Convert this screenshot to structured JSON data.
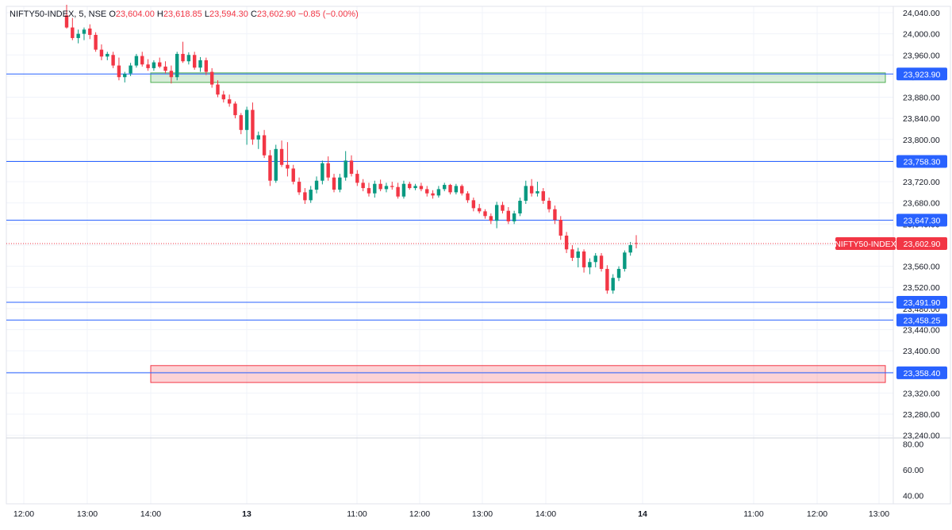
{
  "legend": {
    "symbol": "NIFTY50-INDEX, 5, NSE",
    "o_key": "O",
    "o_val": "23,604.00",
    "h_key": "H",
    "h_val": "23,618.85",
    "l_key": "L",
    "l_val": "23,594.30",
    "c_key": "C",
    "c_val": "23,602.90",
    "change": "−0.85 (−0.00%)"
  },
  "price_axis": {
    "ticks": [
      "24,040.00",
      "24,000.00",
      "23,960.00",
      "23,920.00",
      "23,880.00",
      "23,840.00",
      "23,800.00",
      "23,760.00",
      "23,720.00",
      "23,680.00",
      "23,640.00",
      "23,600.00",
      "23,560.00",
      "23,520.00",
      "23,480.00",
      "23,440.00",
      "23,400.00",
      "23,360.00",
      "23,320.00",
      "23,280.00",
      "23,240.00"
    ],
    "tick_values": [
      24040,
      24000,
      23960,
      23920,
      23880,
      23840,
      23800,
      23760,
      23720,
      23680,
      23640,
      23600,
      23560,
      23520,
      23480,
      23440,
      23400,
      23360,
      23320,
      23280,
      23240
    ]
  },
  "indicator_axis": {
    "ticks": [
      "80.00",
      "60.00",
      "40.00"
    ],
    "tick_values": [
      80,
      60,
      40
    ]
  },
  "time_axis": {
    "labels": [
      "12:00",
      "13:00",
      "14:00",
      "13",
      "11:00",
      "12:00",
      "13:00",
      "14:00",
      "14",
      "11:00",
      "12:00",
      "13:00"
    ],
    "bold": [
      false,
      false,
      false,
      true,
      false,
      false,
      false,
      false,
      true,
      false,
      false,
      false
    ]
  },
  "horizontal_lines": [
    {
      "value": 23923.9,
      "label": "23,923.90"
    },
    {
      "value": 23758.3,
      "label": "23,758.30"
    },
    {
      "value": 23647.3,
      "label": "23,647.30"
    },
    {
      "value": 23491.9,
      "label": "23,491.90"
    },
    {
      "value": 23458.25,
      "label": "23,458.25"
    },
    {
      "value": 23358.4,
      "label": "23,358.40"
    }
  ],
  "zones": [
    {
      "name": "supply-zone",
      "top": 23926,
      "bottom": 23908,
      "color": "#4caf50"
    },
    {
      "name": "demand-zone",
      "top": 23372,
      "bottom": 23340,
      "color": "#f23645"
    }
  ],
  "current_price": {
    "value": 23602.9,
    "symbol_label": "NIFTY50-INDEX",
    "price_label": "23,602.90"
  },
  "colors": {
    "up": "#089981",
    "down": "#f23645",
    "line": "#2962ff",
    "grid": "#f0f3fa"
  },
  "chart_data": {
    "type": "candlestick",
    "series": [
      {
        "name": "NIFTY50-INDEX",
        "ohlc": [
          [
            24035,
            24055,
            24010,
            24012
          ],
          [
            24012,
            24030,
            23988,
            23992
          ],
          [
            23992,
            24008,
            23982,
            24000
          ],
          [
            24000,
            24012,
            23988,
            24008
          ],
          [
            24010,
            24018,
            23990,
            23998
          ],
          [
            23998,
            24003,
            23966,
            23970
          ],
          [
            23970,
            23980,
            23950,
            23957
          ],
          [
            23957,
            23966,
            23950,
            23962
          ],
          [
            23960,
            23966,
            23935,
            23940
          ],
          [
            23940,
            23955,
            23912,
            23918
          ],
          [
            23918,
            23928,
            23908,
            23924
          ],
          [
            23925,
            23945,
            23920,
            23940
          ],
          [
            23940,
            23962,
            23936,
            23958
          ],
          [
            23958,
            23966,
            23938,
            23942
          ],
          [
            23942,
            23952,
            23930,
            23935
          ],
          [
            23935,
            23950,
            23930,
            23946
          ],
          [
            23946,
            23955,
            23935,
            23938
          ],
          [
            23938,
            23948,
            23925,
            23930
          ],
          [
            23930,
            23940,
            23906,
            23918
          ],
          [
            23918,
            23966,
            23912,
            23962
          ],
          [
            23962,
            23985,
            23945,
            23948
          ],
          [
            23948,
            23965,
            23942,
            23960
          ],
          [
            23960,
            23966,
            23932,
            23936
          ],
          [
            23936,
            23956,
            23928,
            23950
          ],
          [
            23950,
            23955,
            23922,
            23928
          ],
          [
            23928,
            23935,
            23898,
            23904
          ],
          [
            23904,
            23912,
            23880,
            23885
          ],
          [
            23885,
            23892,
            23870,
            23876
          ],
          [
            23876,
            23885,
            23862,
            23868
          ],
          [
            23868,
            23872,
            23840,
            23846
          ],
          [
            23846,
            23850,
            23810,
            23818
          ],
          [
            23818,
            23862,
            23790,
            23856
          ],
          [
            23856,
            23870,
            23790,
            23800
          ],
          [
            23800,
            23815,
            23782,
            23808
          ],
          [
            23808,
            23818,
            23765,
            23770
          ],
          [
            23770,
            23780,
            23712,
            23722
          ],
          [
            23722,
            23790,
            23718,
            23782
          ],
          [
            23782,
            23798,
            23748,
            23752
          ],
          [
            23752,
            23795,
            23730,
            23745
          ],
          [
            23745,
            23752,
            23715,
            23720
          ],
          [
            23720,
            23728,
            23695,
            23700
          ],
          [
            23700,
            23708,
            23678,
            23685
          ],
          [
            23685,
            23712,
            23680,
            23705
          ],
          [
            23705,
            23730,
            23698,
            23722
          ],
          [
            23722,
            23760,
            23715,
            23755
          ],
          [
            23755,
            23768,
            23722,
            23728
          ],
          [
            23728,
            23735,
            23700,
            23705
          ],
          [
            23705,
            23735,
            23700,
            23728
          ],
          [
            23728,
            23778,
            23722,
            23760
          ],
          [
            23760,
            23770,
            23730,
            23735
          ],
          [
            23735,
            23742,
            23712,
            23718
          ],
          [
            23718,
            23725,
            23702,
            23708
          ],
          [
            23708,
            23718,
            23692,
            23698
          ],
          [
            23698,
            23722,
            23690,
            23716
          ],
          [
            23716,
            23724,
            23702,
            23706
          ],
          [
            23706,
            23718,
            23700,
            23712
          ],
          [
            23712,
            23720,
            23705,
            23710
          ],
          [
            23710,
            23718,
            23688,
            23692
          ],
          [
            23692,
            23722,
            23688,
            23716
          ],
          [
            23716,
            23720,
            23705,
            23708
          ],
          [
            23708,
            23716,
            23704,
            23712
          ],
          [
            23712,
            23718,
            23702,
            23706
          ],
          [
            23706,
            23712,
            23692,
            23698
          ],
          [
            23698,
            23704,
            23688,
            23694
          ],
          [
            23694,
            23712,
            23690,
            23706
          ],
          [
            23706,
            23718,
            23702,
            23714
          ],
          [
            23714,
            23716,
            23696,
            23700
          ],
          [
            23700,
            23716,
            23696,
            23712
          ],
          [
            23712,
            23715,
            23694,
            23698
          ],
          [
            23698,
            23702,
            23680,
            23685
          ],
          [
            23685,
            23690,
            23664,
            23670
          ],
          [
            23670,
            23678,
            23660,
            23664
          ],
          [
            23664,
            23668,
            23650,
            23655
          ],
          [
            23655,
            23660,
            23640,
            23646
          ],
          [
            23646,
            23682,
            23632,
            23676
          ],
          [
            23676,
            23682,
            23660,
            23665
          ],
          [
            23665,
            23672,
            23640,
            23645
          ],
          [
            23645,
            23665,
            23640,
            23660
          ],
          [
            23660,
            23690,
            23655,
            23684
          ],
          [
            23684,
            23722,
            23678,
            23712
          ],
          [
            23712,
            23725,
            23692,
            23698
          ],
          [
            23698,
            23720,
            23692,
            23702
          ],
          [
            23702,
            23708,
            23678,
            23684
          ],
          [
            23684,
            23690,
            23662,
            23668
          ],
          [
            23668,
            23675,
            23640,
            23648
          ],
          [
            23648,
            23655,
            23610,
            23618
          ],
          [
            23618,
            23625,
            23585,
            23592
          ],
          [
            23592,
            23600,
            23570,
            23576
          ],
          [
            23576,
            23595,
            23558,
            23588
          ],
          [
            23588,
            23592,
            23548,
            23558
          ],
          [
            23558,
            23575,
            23545,
            23568
          ],
          [
            23568,
            23585,
            23558,
            23580
          ],
          [
            23580,
            23585,
            23550,
            23555
          ],
          [
            23555,
            23562,
            23508,
            23514
          ],
          [
            23514,
            23545,
            23508,
            23538
          ],
          [
            23538,
            23560,
            23532,
            23555
          ],
          [
            23555,
            23590,
            23550,
            23586
          ],
          [
            23586,
            23606,
            23580,
            23600
          ],
          [
            23604,
            23619,
            23594,
            23603
          ]
        ]
      }
    ],
    "ylim": [
      23235,
      24052
    ]
  }
}
